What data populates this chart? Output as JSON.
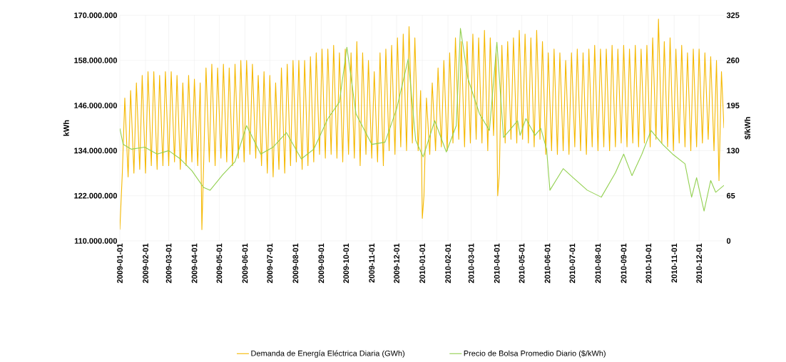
{
  "chart_data": {
    "type": "line",
    "ylabel": "kWh",
    "y2label": "$/kWh",
    "xlim": [
      "2009-01-01",
      "2010-12-31"
    ],
    "xticks": [
      "2009-01-01",
      "2009-02-01",
      "2009-03-01",
      "2009-04-01",
      "2009-05-01",
      "2009-06-01",
      "2009-07-01",
      "2009-08-01",
      "2009-09-01",
      "2009-10-01",
      "2009-11-01",
      "2009-12-01",
      "2010-01-01",
      "2010-02-01",
      "2010-03-01",
      "2010-04-01",
      "2010-05-01",
      "2010-06-01",
      "2010-07-01",
      "2010-08-01",
      "2010-09-01",
      "2010-10-01",
      "2010-11-01",
      "2010-12-01"
    ],
    "ylim": [
      110000000,
      170000000
    ],
    "yticks": [
      {
        "value": 110000000,
        "label": "110.000.000"
      },
      {
        "value": 122000000,
        "label": "122.000.000"
      },
      {
        "value": 134000000,
        "label": "134.000.000"
      },
      {
        "value": 146000000,
        "label": "146.000.000"
      },
      {
        "value": 158000000,
        "label": "158.000.000"
      },
      {
        "value": 170000000,
        "label": "170.000.000"
      }
    ],
    "y2lim": [
      0,
      325
    ],
    "y2ticks": [
      0,
      65,
      130,
      195,
      260,
      325
    ],
    "grid": true,
    "legend": "bottom",
    "marker": "none",
    "line_style": "solid",
    "series": [
      {
        "name": "Demanda de Energía Eléctrica Diaria (GWh)",
        "color": "#f5b800",
        "x": [
          "2009-01-01",
          "2009-01-04",
          "2009-01-07",
          "2009-01-11",
          "2009-01-14",
          "2009-01-18",
          "2009-01-21",
          "2009-01-25",
          "2009-01-28",
          "2009-02-01",
          "2009-02-04",
          "2009-02-08",
          "2009-02-11",
          "2009-02-15",
          "2009-02-18",
          "2009-02-22",
          "2009-02-25",
          "2009-03-01",
          "2009-03-04",
          "2009-03-08",
          "2009-03-11",
          "2009-03-15",
          "2009-03-18",
          "2009-03-22",
          "2009-03-25",
          "2009-03-29",
          "2009-04-01",
          "2009-04-05",
          "2009-04-08",
          "2009-04-10",
          "2009-04-12",
          "2009-04-15",
          "2009-04-19",
          "2009-04-22",
          "2009-04-26",
          "2009-04-29",
          "2009-05-03",
          "2009-05-06",
          "2009-05-10",
          "2009-05-13",
          "2009-05-17",
          "2009-05-20",
          "2009-05-24",
          "2009-05-27",
          "2009-05-31",
          "2009-06-03",
          "2009-06-07",
          "2009-06-10",
          "2009-06-14",
          "2009-06-17",
          "2009-06-21",
          "2009-06-24",
          "2009-06-28",
          "2009-07-01",
          "2009-07-05",
          "2009-07-08",
          "2009-07-12",
          "2009-07-15",
          "2009-07-19",
          "2009-07-22",
          "2009-07-26",
          "2009-07-29",
          "2009-08-02",
          "2009-08-05",
          "2009-08-09",
          "2009-08-12",
          "2009-08-16",
          "2009-08-19",
          "2009-08-23",
          "2009-08-26",
          "2009-08-30",
          "2009-09-02",
          "2009-09-06",
          "2009-09-09",
          "2009-09-13",
          "2009-09-16",
          "2009-09-20",
          "2009-09-23",
          "2009-09-27",
          "2009-09-30",
          "2009-10-04",
          "2009-10-07",
          "2009-10-11",
          "2009-10-14",
          "2009-10-18",
          "2009-10-21",
          "2009-10-25",
          "2009-10-28",
          "2009-11-01",
          "2009-11-04",
          "2009-11-08",
          "2009-11-11",
          "2009-11-15",
          "2009-11-18",
          "2009-11-22",
          "2009-11-25",
          "2009-11-29",
          "2009-12-02",
          "2009-12-06",
          "2009-12-09",
          "2009-12-13",
          "2009-12-16",
          "2009-12-20",
          "2009-12-23",
          "2009-12-27",
          "2009-12-30",
          "2010-01-01",
          "2010-01-03",
          "2010-01-06",
          "2010-01-10",
          "2010-01-13",
          "2010-01-17",
          "2010-01-20",
          "2010-01-24",
          "2010-01-27",
          "2010-01-31",
          "2010-02-03",
          "2010-02-07",
          "2010-02-10",
          "2010-02-14",
          "2010-02-17",
          "2010-02-21",
          "2010-02-24",
          "2010-02-28",
          "2010-03-03",
          "2010-03-07",
          "2010-03-10",
          "2010-03-14",
          "2010-03-17",
          "2010-03-21",
          "2010-03-24",
          "2010-03-28",
          "2010-03-31",
          "2010-04-02",
          "2010-04-04",
          "2010-04-07",
          "2010-04-11",
          "2010-04-14",
          "2010-04-18",
          "2010-04-21",
          "2010-04-25",
          "2010-04-28",
          "2010-05-02",
          "2010-05-05",
          "2010-05-09",
          "2010-05-12",
          "2010-05-16",
          "2010-05-19",
          "2010-05-23",
          "2010-05-26",
          "2010-05-30",
          "2010-06-02",
          "2010-06-06",
          "2010-06-09",
          "2010-06-13",
          "2010-06-16",
          "2010-06-20",
          "2010-06-23",
          "2010-06-27",
          "2010-06-30",
          "2010-07-04",
          "2010-07-07",
          "2010-07-11",
          "2010-07-14",
          "2010-07-18",
          "2010-07-21",
          "2010-07-25",
          "2010-07-28",
          "2010-08-01",
          "2010-08-04",
          "2010-08-08",
          "2010-08-11",
          "2010-08-15",
          "2010-08-18",
          "2010-08-22",
          "2010-08-25",
          "2010-08-29",
          "2010-09-01",
          "2010-09-05",
          "2010-09-08",
          "2010-09-12",
          "2010-09-15",
          "2010-09-19",
          "2010-09-22",
          "2010-09-26",
          "2010-09-29",
          "2010-10-03",
          "2010-10-06",
          "2010-10-10",
          "2010-10-13",
          "2010-10-17",
          "2010-10-20",
          "2010-10-24",
          "2010-10-27",
          "2010-10-31",
          "2010-11-03",
          "2010-11-07",
          "2010-11-10",
          "2010-11-14",
          "2010-11-17",
          "2010-11-21",
          "2010-11-24",
          "2010-11-28",
          "2010-12-01",
          "2010-12-05",
          "2010-12-08",
          "2010-12-12",
          "2010-12-15",
          "2010-12-19",
          "2010-12-22",
          "2010-12-25",
          "2010-12-28",
          "2010-12-31"
        ],
        "values": [
          113000000,
          128000000,
          148000000,
          127000000,
          150000000,
          128000000,
          152000000,
          129000000,
          154000000,
          128000000,
          155000000,
          130000000,
          155000000,
          129000000,
          154000000,
          130000000,
          155000000,
          130000000,
          155000000,
          131000000,
          154000000,
          129000000,
          152000000,
          130000000,
          154000000,
          131000000,
          153000000,
          130000000,
          152000000,
          113000000,
          129000000,
          156000000,
          131000000,
          157000000,
          130000000,
          156000000,
          132000000,
          157000000,
          131000000,
          156000000,
          130000000,
          157000000,
          132000000,
          158000000,
          131000000,
          158000000,
          133000000,
          157000000,
          132000000,
          154000000,
          130000000,
          155000000,
          128000000,
          154000000,
          127000000,
          152000000,
          129000000,
          156000000,
          128000000,
          157000000,
          130000000,
          158000000,
          131000000,
          158000000,
          129000000,
          158000000,
          130000000,
          159000000,
          131000000,
          160000000,
          133000000,
          161000000,
          132000000,
          161000000,
          133000000,
          162000000,
          132000000,
          160000000,
          131000000,
          161000000,
          133000000,
          160000000,
          132000000,
          163000000,
          130000000,
          160000000,
          133000000,
          158000000,
          132000000,
          155000000,
          131000000,
          160000000,
          130000000,
          161000000,
          134000000,
          162000000,
          133000000,
          164000000,
          135000000,
          165000000,
          134000000,
          167000000,
          136000000,
          164000000,
          134000000,
          150000000,
          116000000,
          122000000,
          148000000,
          133000000,
          152000000,
          134000000,
          156000000,
          135000000,
          158000000,
          134000000,
          160000000,
          136000000,
          164000000,
          137000000,
          163000000,
          135000000,
          163000000,
          136000000,
          165000000,
          137000000,
          164000000,
          136000000,
          166000000,
          134000000,
          164000000,
          138000000,
          160000000,
          122000000,
          128000000,
          162000000,
          136000000,
          163000000,
          137000000,
          164000000,
          136000000,
          166000000,
          137000000,
          165000000,
          136000000,
          164000000,
          135000000,
          166000000,
          137000000,
          163000000,
          133000000,
          160000000,
          134000000,
          161000000,
          133000000,
          160000000,
          134000000,
          158000000,
          133000000,
          160000000,
          135000000,
          161000000,
          134000000,
          160000000,
          133000000,
          161000000,
          135000000,
          162000000,
          134000000,
          161000000,
          135000000,
          161000000,
          134000000,
          162000000,
          135000000,
          161000000,
          136000000,
          162000000,
          135000000,
          161000000,
          136000000,
          162000000,
          135000000,
          161000000,
          136000000,
          162000000,
          135000000,
          164000000,
          137000000,
          169000000,
          136000000,
          163000000,
          135000000,
          164000000,
          134000000,
          161000000,
          136000000,
          162000000,
          135000000,
          160000000,
          134000000,
          161000000,
          135000000,
          161000000,
          136000000,
          160000000,
          137000000,
          159000000,
          134000000,
          158000000,
          126000000,
          155000000,
          140000000
        ]
      },
      {
        "name": "Precio de Bolsa Promedio Diario ($/kWh)",
        "color": "#92d050",
        "axis": "y2",
        "x": [
          "2009-01-01",
          "2009-01-05",
          "2009-01-15",
          "2009-01-31",
          "2009-02-15",
          "2009-03-01",
          "2009-03-15",
          "2009-03-29",
          "2009-04-12",
          "2009-04-20",
          "2009-05-05",
          "2009-05-20",
          "2009-06-03",
          "2009-06-20",
          "2009-07-05",
          "2009-07-21",
          "2009-08-08",
          "2009-08-23",
          "2009-09-09",
          "2009-09-23",
          "2009-10-02",
          "2009-10-13",
          "2009-11-01",
          "2009-11-17",
          "2009-12-01",
          "2009-12-15",
          "2009-12-24",
          "2010-01-02",
          "2010-01-16",
          "2010-01-30",
          "2010-02-11",
          "2010-02-16",
          "2010-02-25",
          "2010-03-11",
          "2010-03-23",
          "2010-04-01",
          "2010-04-09",
          "2010-04-26",
          "2010-04-29",
          "2010-05-06",
          "2010-05-17",
          "2010-05-24",
          "2010-05-31",
          "2010-06-04",
          "2010-06-20",
          "2010-07-02",
          "2010-07-19",
          "2010-08-05",
          "2010-08-22",
          "2010-09-01",
          "2010-09-11",
          "2010-09-23",
          "2010-10-04",
          "2010-10-18",
          "2010-10-30",
          "2010-11-14",
          "2010-11-22",
          "2010-11-28",
          "2010-12-07",
          "2010-12-15",
          "2010-12-21",
          "2010-12-31"
        ],
        "values": [
          162,
          139,
          132,
          135,
          125,
          130,
          118,
          101,
          77,
          73,
          95,
          114,
          166,
          125,
          135,
          156,
          118,
          132,
          176,
          200,
          279,
          183,
          139,
          142,
          190,
          262,
          145,
          121,
          173,
          128,
          166,
          306,
          234,
          183,
          159,
          286,
          149,
          173,
          152,
          176,
          152,
          162,
          132,
          73,
          104,
          91,
          73,
          63,
          98,
          125,
          94,
          125,
          159,
          139,
          125,
          111,
          63,
          91,
          43,
          87,
          70,
          80
        ]
      }
    ]
  }
}
